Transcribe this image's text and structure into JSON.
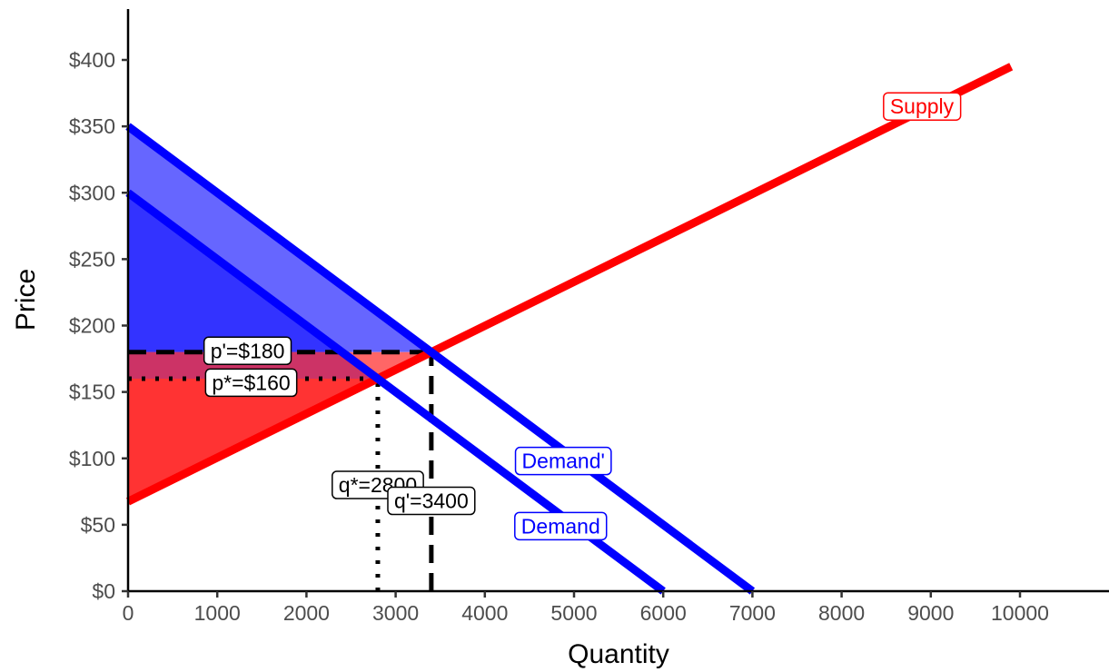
{
  "chart_data": {
    "type": "line",
    "title": "",
    "xlabel": "Quantity",
    "ylabel": "Price",
    "xlim": [
      0,
      11000
    ],
    "ylim": [
      0,
      440
    ],
    "x_ticks": [
      0,
      1000,
      2000,
      3000,
      4000,
      5000,
      6000,
      7000,
      8000,
      9000,
      10000
    ],
    "x_tick_labels": [
      "0",
      "1000",
      "2000",
      "3000",
      "4000",
      "5000",
      "6000",
      "7000",
      "8000",
      "9000",
      "10000"
    ],
    "y_ticks": [
      0,
      50,
      100,
      150,
      200,
      250,
      300,
      350,
      400
    ],
    "y_tick_labels": [
      "$0",
      "$50",
      "$100",
      "$150",
      "$200",
      "$250",
      "$300",
      "$350",
      "$400"
    ],
    "grid": false,
    "series": [
      {
        "name": "Supply",
        "color": "#ff0000",
        "x": [
          0,
          9900
        ],
        "y": [
          67.5,
          395
        ]
      },
      {
        "name": "Demand",
        "color": "#0000ff",
        "x": [
          0,
          6000
        ],
        "y": [
          300,
          0
        ]
      },
      {
        "name": "Demand'",
        "color": "#0000ff",
        "x": [
          0,
          7000
        ],
        "y": [
          350,
          0
        ]
      }
    ],
    "shaded_areas": [
      {
        "color": "#6666ff",
        "points": [
          [
            0,
            350
          ],
          [
            3400,
            180
          ],
          [
            0,
            180
          ]
        ]
      },
      {
        "color": "#3333ff",
        "points": [
          [
            0,
            300
          ],
          [
            2800,
            160
          ],
          [
            0,
            160
          ]
        ]
      },
      {
        "color": "#ff6666",
        "points": [
          [
            0,
            180
          ],
          [
            3400,
            180
          ],
          [
            0,
            67.5
          ]
        ]
      },
      {
        "color": "#ff3333",
        "points": [
          [
            0,
            160
          ],
          [
            2800,
            160
          ],
          [
            0,
            67.5
          ]
        ]
      },
      {
        "color": "#cc3366",
        "points": [
          [
            0,
            180
          ],
          [
            2480,
            180
          ],
          [
            2800,
            160
          ],
          [
            0,
            160
          ]
        ]
      }
    ],
    "reference_lines": [
      {
        "style": "dashed",
        "x": [
          0,
          3400
        ],
        "y": [
          180,
          180
        ]
      },
      {
        "style": "dashed",
        "x": [
          3400,
          3400
        ],
        "y": [
          0,
          180
        ]
      },
      {
        "style": "dotted",
        "x": [
          0,
          2800
        ],
        "y": [
          160,
          160
        ]
      },
      {
        "style": "dotted",
        "x": [
          2800,
          2800
        ],
        "y": [
          0,
          160
        ]
      }
    ],
    "annotations": [
      {
        "text": "Supply",
        "x": 8900,
        "y": 365,
        "color": "#ff0000"
      },
      {
        "text": "Demand'",
        "x": 4880,
        "y": 98,
        "color": "#0000ff"
      },
      {
        "text": "Demand",
        "x": 4850,
        "y": 49,
        "color": "#0000ff"
      },
      {
        "text": "p*=$160",
        "x": 1380,
        "y": 157,
        "color": "#000000"
      },
      {
        "text": "p'=$180",
        "x": 1340,
        "y": 181,
        "color": "#000000"
      },
      {
        "text": "q*=2800",
        "x": 2800,
        "y": 80,
        "color": "#000000"
      },
      {
        "text": "q'=3400",
        "x": 3400,
        "y": 68,
        "color": "#000000"
      }
    ]
  }
}
